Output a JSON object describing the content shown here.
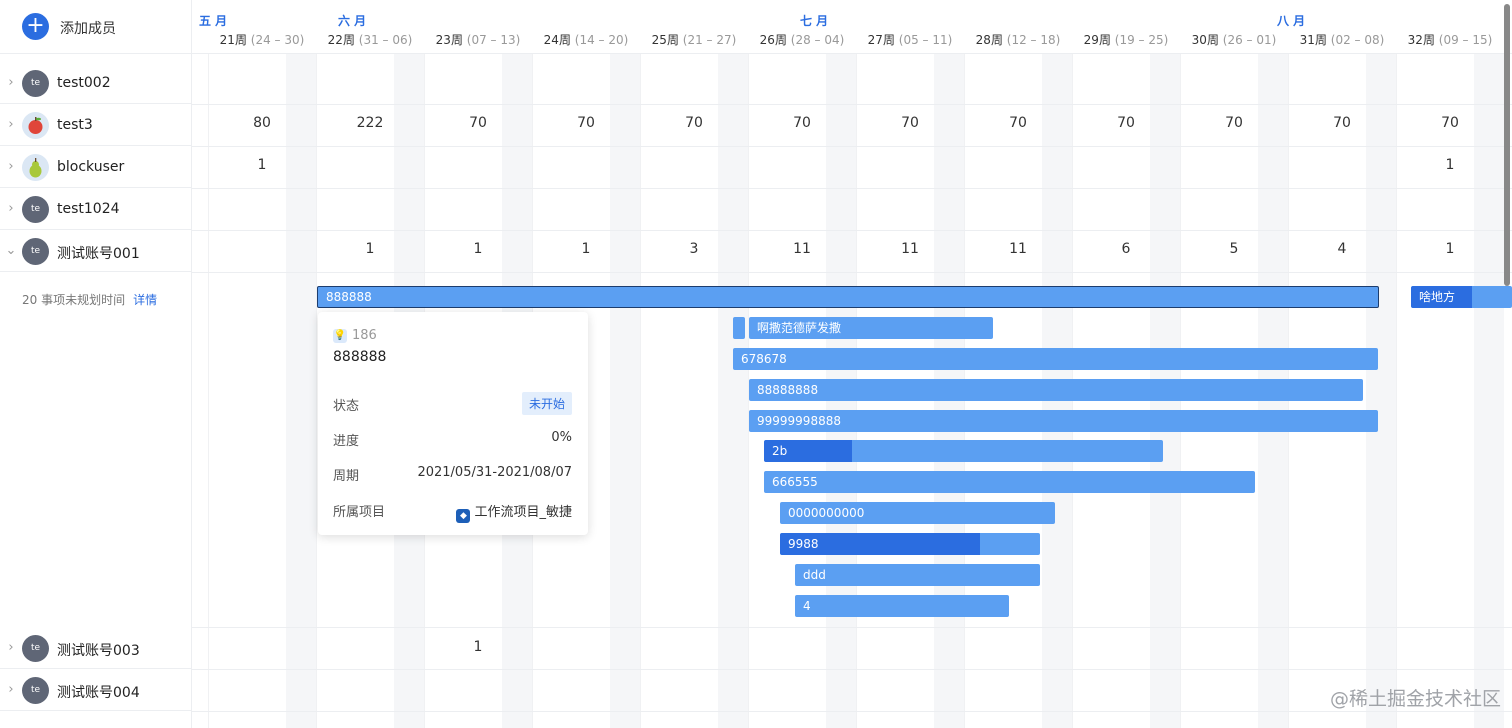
{
  "toolbar": {
    "add_label": "添加成员",
    "add_icon": "plus-icon"
  },
  "months": [
    {
      "label": "五 月"
    },
    {
      "label": "六 月"
    },
    {
      "label": "七 月"
    },
    {
      "label": "八 月"
    }
  ],
  "weeks": [
    {
      "name": "21周",
      "range": "(24 – 30)"
    },
    {
      "name": "22周",
      "range": "(31 – 06)"
    },
    {
      "name": "23周",
      "range": "(07 – 13)"
    },
    {
      "name": "24周",
      "range": "(14 – 20)"
    },
    {
      "name": "25周",
      "range": "(21 – 27)"
    },
    {
      "name": "26周",
      "range": "(28 – 04)"
    },
    {
      "name": "27周",
      "range": "(05 – 11)"
    },
    {
      "name": "28周",
      "range": "(12 – 18)"
    },
    {
      "name": "29周",
      "range": "(19 – 25)"
    },
    {
      "name": "30周",
      "range": "(26 – 01)"
    },
    {
      "name": "31周",
      "range": "(02 – 08)"
    },
    {
      "name": "32周",
      "range": "(09 – 15)"
    }
  ],
  "members": [
    {
      "name": "test002",
      "avatar": "te",
      "expanded": false,
      "values": [
        "",
        "",
        "",
        "",
        "",
        "",
        "",
        "",
        "",
        "",
        "",
        ""
      ]
    },
    {
      "name": "test3",
      "avatar": "apple-icon",
      "expanded": false,
      "values": [
        "80",
        "222",
        "70",
        "70",
        "70",
        "70",
        "70",
        "70",
        "70",
        "70",
        "70",
        "70"
      ]
    },
    {
      "name": "blockuser",
      "avatar": "pear-icon",
      "expanded": false,
      "values": [
        "1",
        "",
        "",
        "",
        "",
        "",
        "",
        "",
        "",
        "",
        "",
        "1"
      ]
    },
    {
      "name": "test1024",
      "avatar": "te",
      "expanded": false,
      "values": [
        "",
        "",
        "",
        "",
        "",
        "",
        "",
        "",
        "",
        "",
        "",
        ""
      ]
    },
    {
      "name": "测试账号001",
      "avatar": "te",
      "expanded": true,
      "values": [
        "",
        "1",
        "1",
        "1",
        "3",
        "11",
        "11",
        "11",
        "6",
        "5",
        "4",
        "1"
      ]
    },
    {
      "name": "测试账号003",
      "avatar": "te",
      "expanded": false,
      "values": [
        "",
        "",
        "1",
        "",
        "",
        "",
        "",
        "",
        "",
        "",
        "",
        ""
      ]
    },
    {
      "name": "测试账号004",
      "avatar": "te",
      "expanded": false,
      "values": [
        "",
        "",
        "",
        "",
        "",
        "",
        "",
        "",
        "",
        "",
        "",
        ""
      ]
    }
  ],
  "unplanned": {
    "text": "20 事项未规划时间",
    "link": "详情"
  },
  "tasks": [
    {
      "name": "888888",
      "progress": 0,
      "selected": true
    },
    {
      "name": "啥地方",
      "progress": 0.6
    },
    {
      "name": "",
      "progress": 0
    },
    {
      "name": "啊撒范德萨发撒",
      "progress": 0
    },
    {
      "name": "678678",
      "progress": 0
    },
    {
      "name": "88888888",
      "progress": 0
    },
    {
      "name": "99999998888",
      "progress": 0
    },
    {
      "name": "2b",
      "progress": 0.22
    },
    {
      "name": "666555",
      "progress": 0
    },
    {
      "name": "0000000000",
      "progress": 0
    },
    {
      "name": "9988",
      "progress": 0.77
    },
    {
      "name": "ddd",
      "progress": 0
    },
    {
      "name": "4",
      "progress": 0
    }
  ],
  "tooltip": {
    "id": "186",
    "title": "888888",
    "status_label": "状态",
    "status_value": "未开始",
    "progress_label": "进度",
    "progress_value": "0%",
    "period_label": "周期",
    "period_value": "2021/05/31-2021/08/07",
    "project_label": "所属项目",
    "project_value": "工作流项目_敏捷"
  },
  "colors": {
    "accent": "#2b6de0",
    "bar": "#5b9ff2"
  },
  "watermark": "@稀土掘金技术社区"
}
